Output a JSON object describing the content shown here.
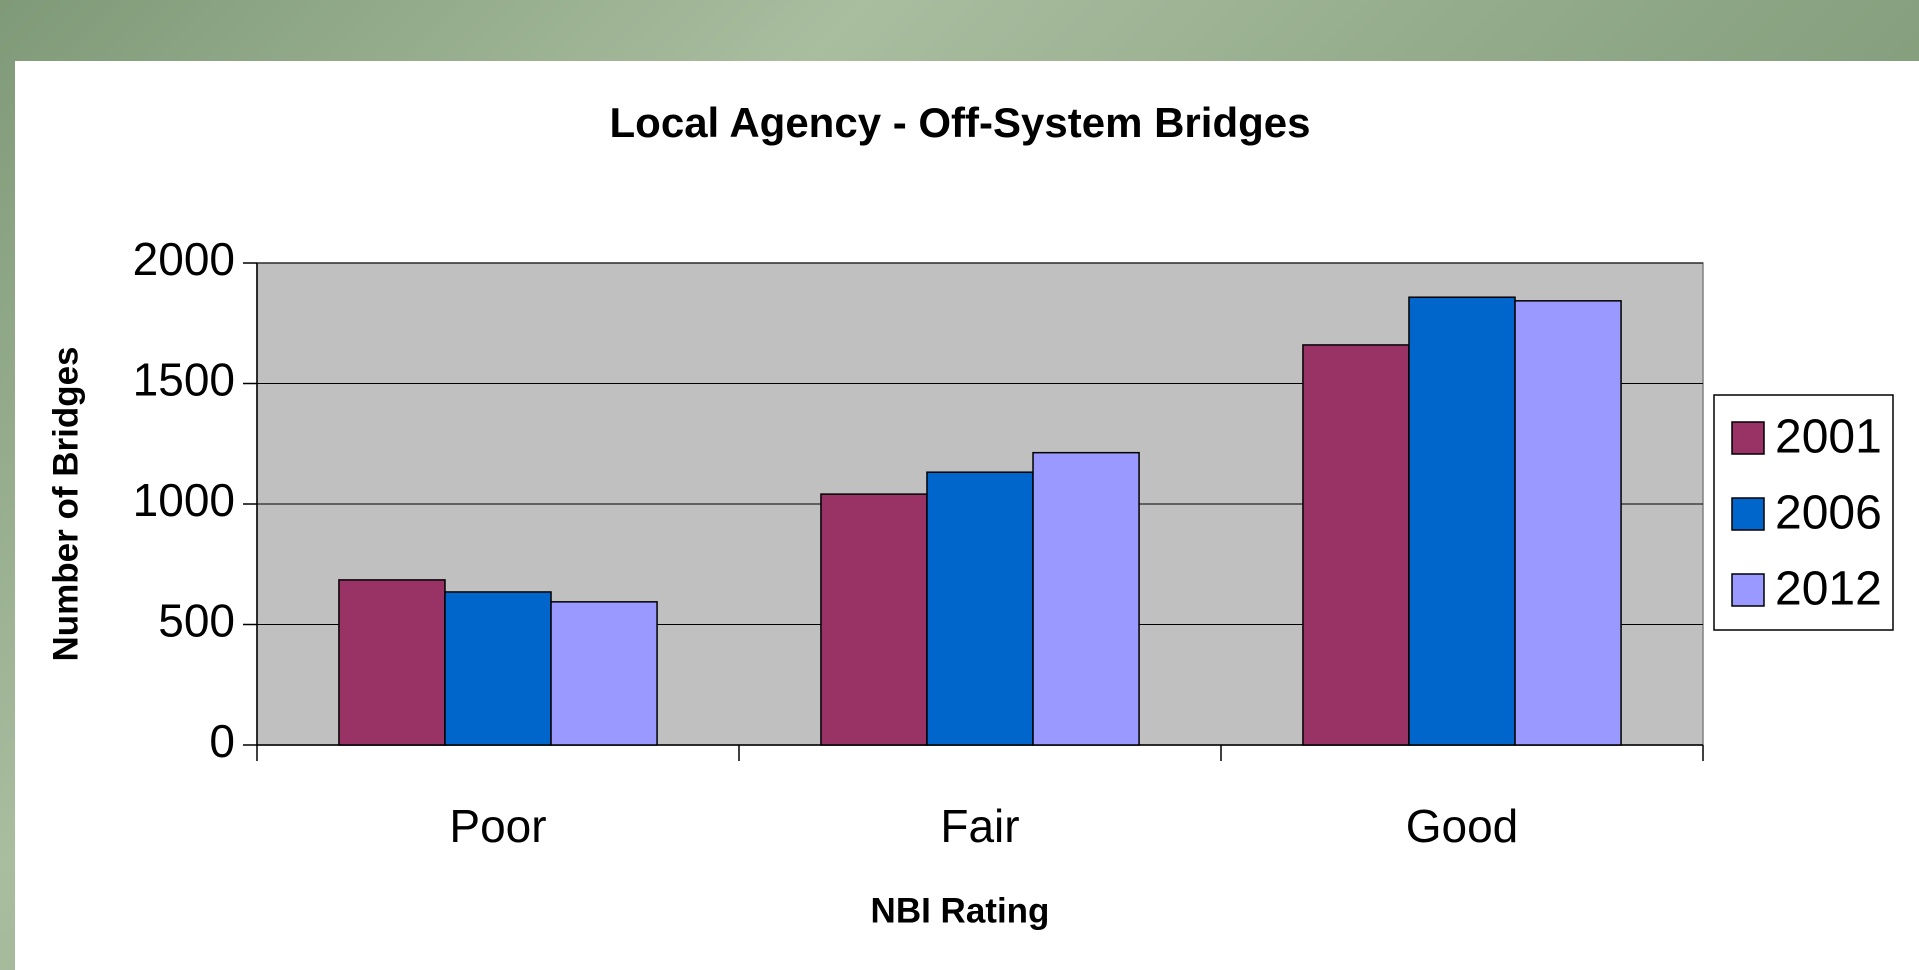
{
  "chart_data": {
    "type": "bar",
    "title": "Local Agency -  Off-System Bridges",
    "x_label": "NBI Rating",
    "y_label": "Number of Bridges",
    "categories": [
      "Poor",
      "Fair",
      "Good"
    ],
    "series": [
      {
        "name": "2001",
        "color": "#993366",
        "values": [
          685,
          1041,
          1660
        ]
      },
      {
        "name": "2006",
        "color": "#0066cc",
        "values": [
          635,
          1132,
          1858
        ]
      },
      {
        "name": "2012",
        "color": "#9999ff",
        "values": [
          594,
          1213,
          1843
        ]
      }
    ],
    "ylim": [
      0,
      2000
    ],
    "yticks": [
      0,
      500,
      1000,
      1500,
      2000
    ],
    "grid": true,
    "legend": "right"
  }
}
